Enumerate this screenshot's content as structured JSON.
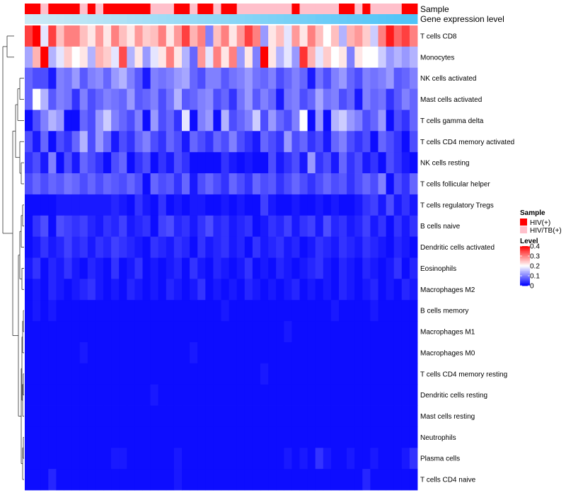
{
  "chart_data": {
    "type": "heatmap",
    "annotation_labels": {
      "sample": "Sample",
      "gene_expression": "Gene expression level"
    },
    "rows": [
      "T cells CD8",
      "Monocytes",
      "NK cells activated",
      "Mast cells activated",
      "T cells gamma delta",
      "T cells CD4 memory activated",
      "NK cells resting",
      "T cells follicular helper",
      "T cells regulatory  Tregs",
      "B cells naive",
      "Dendritic cells activated",
      "Eosinophils",
      "Macrophages M2",
      "B cells memory",
      "Macrophages M1",
      "Macrophages M0",
      "T cells CD4 memory resting",
      "Dendritic cells resting",
      "Mast cells resting",
      "Neutrophils",
      "Plasma cells",
      "T cells CD4 naive"
    ],
    "sample_groups": [
      "HIV(+)",
      "HIV(+)",
      "HIV/TB(+)",
      "HIV(+)",
      "HIV(+)",
      "HIV(+)",
      "HIV(+)",
      "HIV/TB(+)",
      "HIV(+)",
      "HIV/TB(+)",
      "HIV(+)",
      "HIV(+)",
      "HIV(+)",
      "HIV(+)",
      "HIV(+)",
      "HIV(+)",
      "HIV/TB(+)",
      "HIV/TB(+)",
      "HIV/TB(+)",
      "HIV(+)",
      "HIV(+)",
      "HIV/TB(+)",
      "HIV(+)",
      "HIV(+)",
      "HIV/TB(+)",
      "HIV(+)",
      "HIV(+)",
      "HIV/TB(+)",
      "HIV/TB(+)",
      "HIV/TB(+)",
      "HIV/TB(+)",
      "HIV/TB(+)",
      "HIV/TB(+)",
      "HIV/TB(+)",
      "HIV(+)",
      "HIV/TB(+)",
      "HIV/TB(+)",
      "HIV/TB(+)",
      "HIV/TB(+)",
      "HIV/TB(+)",
      "HIV(+)",
      "HIV(+)",
      "HIV/TB(+)",
      "HIV(+)",
      "HIV/TB(+)",
      "HIV/TB(+)",
      "HIV/TB(+)",
      "HIV/TB(+)",
      "HIV(+)",
      "HIV(+)"
    ],
    "gene_expression": [
      0.0,
      0.02,
      0.04,
      0.06,
      0.08,
      0.1,
      0.12,
      0.14,
      0.16,
      0.18,
      0.2,
      0.22,
      0.24,
      0.27,
      0.29,
      0.31,
      0.33,
      0.35,
      0.37,
      0.39,
      0.41,
      0.43,
      0.45,
      0.47,
      0.49,
      0.51,
      0.53,
      0.55,
      0.57,
      0.59,
      0.61,
      0.63,
      0.65,
      0.67,
      0.69,
      0.71,
      0.73,
      0.76,
      0.78,
      0.8,
      0.82,
      0.84,
      0.86,
      0.88,
      0.9,
      0.92,
      0.94,
      0.96,
      0.98,
      1.0
    ],
    "values": [
      [
        0.35,
        0.4,
        0.18,
        0.35,
        0.25,
        0.3,
        0.3,
        0.25,
        0.22,
        0.28,
        0.22,
        0.3,
        0.25,
        0.22,
        0.28,
        0.24,
        0.25,
        0.3,
        0.22,
        0.28,
        0.35,
        0.26,
        0.3,
        0.1,
        0.25,
        0.3,
        0.22,
        0.28,
        0.35,
        0.3,
        0.12,
        0.22,
        0.25,
        0.18,
        0.28,
        0.22,
        0.3,
        0.25,
        0.2,
        0.25,
        0.14,
        0.26,
        0.28,
        0.24,
        0.16,
        0.3,
        0.38,
        0.32,
        0.35,
        0.3
      ],
      [
        0.13,
        0.26,
        0.4,
        0.14,
        0.18,
        0.24,
        0.2,
        0.22,
        0.14,
        0.26,
        0.24,
        0.18,
        0.34,
        0.14,
        0.22,
        0.12,
        0.18,
        0.22,
        0.3,
        0.22,
        0.14,
        0.08,
        0.28,
        0.18,
        0.3,
        0.22,
        0.3,
        0.12,
        0.22,
        0.1,
        0.4,
        0.22,
        0.14,
        0.18,
        0.12,
        0.36,
        0.26,
        0.18,
        0.24,
        0.2,
        0.22,
        0.1,
        0.22,
        0.2,
        0.2,
        0.16,
        0.12,
        0.14,
        0.12,
        0.14
      ],
      [
        0.08,
        0.06,
        0.06,
        0.02,
        0.1,
        0.09,
        0.12,
        0.07,
        0.1,
        0.11,
        0.08,
        0.12,
        0.14,
        0.1,
        0.07,
        0.02,
        0.1,
        0.09,
        0.1,
        0.12,
        0.13,
        0.08,
        0.06,
        0.1,
        0.1,
        0.07,
        0.09,
        0.1,
        0.12,
        0.09,
        0.08,
        0.1,
        0.06,
        0.08,
        0.1,
        0.08,
        0.02,
        0.09,
        0.06,
        0.1,
        0.12,
        0.08,
        0.06,
        0.1,
        0.09,
        0.1,
        0.12,
        0.07,
        0.08,
        0.1
      ],
      [
        0.08,
        0.2,
        0.14,
        0.07,
        0.1,
        0.09,
        0.04,
        0.1,
        0.06,
        0.08,
        0.1,
        0.09,
        0.08,
        0.12,
        0.07,
        0.08,
        0.1,
        0.06,
        0.09,
        0.14,
        0.07,
        0.08,
        0.1,
        0.11,
        0.06,
        0.08,
        0.04,
        0.09,
        0.12,
        0.07,
        0.1,
        0.08,
        0.02,
        0.09,
        0.1,
        0.06,
        0.08,
        0.13,
        0.09,
        0.1,
        0.06,
        0.08,
        0.02,
        0.1,
        0.08,
        0.09,
        0.04,
        0.07,
        0.1,
        0.08
      ],
      [
        0.01,
        0.06,
        0.1,
        0.14,
        0.12,
        0.01,
        0.01,
        0.08,
        0.06,
        0.12,
        0.16,
        0.1,
        0.08,
        0.06,
        0.1,
        0.01,
        0.12,
        0.06,
        0.08,
        0.04,
        0.18,
        0.01,
        0.1,
        0.12,
        0.01,
        0.14,
        0.06,
        0.08,
        0.1,
        0.16,
        0.06,
        0.12,
        0.08,
        0.06,
        0.1,
        0.2,
        0.01,
        0.12,
        0.01,
        0.14,
        0.16,
        0.12,
        0.1,
        0.06,
        0.08,
        0.12,
        0.01,
        0.06,
        0.04,
        0.08
      ],
      [
        0.06,
        0.02,
        0.08,
        0.01,
        0.06,
        0.04,
        0.08,
        0.14,
        0.06,
        0.12,
        0.08,
        0.02,
        0.06,
        0.04,
        0.08,
        0.1,
        0.06,
        0.04,
        0.08,
        0.06,
        0.02,
        0.08,
        0.06,
        0.04,
        0.08,
        0.06,
        0.1,
        0.06,
        0.04,
        0.02,
        0.08,
        0.06,
        0.04,
        0.12,
        0.06,
        0.08,
        0.04,
        0.06,
        0.02,
        0.08,
        0.1,
        0.06,
        0.04,
        0.06,
        0.01,
        0.08,
        0.06,
        0.04,
        0.01,
        0.06
      ],
      [
        0.04,
        0.06,
        0.02,
        0.1,
        0.01,
        0.06,
        0.02,
        0.08,
        0.06,
        0.04,
        0.01,
        0.06,
        0.08,
        0.01,
        0.04,
        0.06,
        0.01,
        0.04,
        0.02,
        0.06,
        0.04,
        0.01,
        0.01,
        0.01,
        0.01,
        0.04,
        0.02,
        0.01,
        0.02,
        0.01,
        0.01,
        0.06,
        0.02,
        0.04,
        0.06,
        0.02,
        0.12,
        0.04,
        0.06,
        0.02,
        0.08,
        0.04,
        0.06,
        0.02,
        0.04,
        0.01,
        0.06,
        0.04,
        0.02,
        0.01
      ],
      [
        0.06,
        0.08,
        0.06,
        0.08,
        0.07,
        0.09,
        0.08,
        0.06,
        0.08,
        0.06,
        0.08,
        0.07,
        0.06,
        0.08,
        0.06,
        0.01,
        0.08,
        0.06,
        0.07,
        0.04,
        0.08,
        0.02,
        0.06,
        0.08,
        0.06,
        0.04,
        0.08,
        0.06,
        0.04,
        0.08,
        0.06,
        0.07,
        0.04,
        0.06,
        0.08,
        0.06,
        0.04,
        0.06,
        0.08,
        0.06,
        0.07,
        0.04,
        0.06,
        0.08,
        0.06,
        0.1,
        0.01,
        0.06,
        0.04,
        0.08
      ],
      [
        0.01,
        0.01,
        0.01,
        0.01,
        0.02,
        0.02,
        0.02,
        0.02,
        0.02,
        0.02,
        0.02,
        0.03,
        0.02,
        0.01,
        0.04,
        0.02,
        0.01,
        0.04,
        0.01,
        0.02,
        0.01,
        0.02,
        0.02,
        0.01,
        0.01,
        0.02,
        0.01,
        0.02,
        0.01,
        0.01,
        0.05,
        0.02,
        0.01,
        0.01,
        0.02,
        0.01,
        0.01,
        0.02,
        0.01,
        0.02,
        0.01,
        0.01,
        0.02,
        0.04,
        0.05,
        0.02,
        0.06,
        0.02,
        0.04,
        0.02
      ],
      [
        0.01,
        0.04,
        0.06,
        0.01,
        0.06,
        0.05,
        0.04,
        0.05,
        0.03,
        0.02,
        0.04,
        0.03,
        0.05,
        0.02,
        0.03,
        0.04,
        0.01,
        0.05,
        0.06,
        0.03,
        0.04,
        0.02,
        0.04,
        0.06,
        0.03,
        0.04,
        0.02,
        0.03,
        0.04,
        0.01,
        0.02,
        0.04,
        0.03,
        0.05,
        0.02,
        0.04,
        0.05,
        0.02,
        0.06,
        0.03,
        0.04,
        0.02,
        0.03,
        0.05,
        0.02,
        0.04,
        0.01,
        0.04,
        0.02,
        0.04
      ],
      [
        0.01,
        0.02,
        0.04,
        0.02,
        0.03,
        0.05,
        0.03,
        0.04,
        0.02,
        0.04,
        0.03,
        0.05,
        0.04,
        0.03,
        0.02,
        0.01,
        0.04,
        0.03,
        0.02,
        0.04,
        0.03,
        0.01,
        0.04,
        0.02,
        0.03,
        0.04,
        0.02,
        0.03,
        0.01,
        0.04,
        0.02,
        0.03,
        0.04,
        0.02,
        0.03,
        0.01,
        0.02,
        0.04,
        0.03,
        0.02,
        0.04,
        0.03,
        0.02,
        0.04,
        0.03,
        0.02,
        0.01,
        0.03,
        0.02,
        0.01
      ],
      [
        0.02,
        0.04,
        0.01,
        0.03,
        0.02,
        0.04,
        0.02,
        0.01,
        0.03,
        0.02,
        0.01,
        0.04,
        0.01,
        0.02,
        0.04,
        0.01,
        0.02,
        0.01,
        0.02,
        0.03,
        0.01,
        0.04,
        0.02,
        0.01,
        0.03,
        0.02,
        0.01,
        0.02,
        0.04,
        0.01,
        0.02,
        0.01,
        0.03,
        0.02,
        0.01,
        0.02,
        0.03,
        0.04,
        0.02,
        0.01,
        0.03,
        0.02,
        0.01,
        0.03,
        0.02,
        0.01,
        0.02,
        0.04,
        0.01,
        0.03
      ],
      [
        0.01,
        0.02,
        0.01,
        0.03,
        0.02,
        0.01,
        0.02,
        0.03,
        0.04,
        0.02,
        0.01,
        0.02,
        0.01,
        0.03,
        0.02,
        0.01,
        0.02,
        0.01,
        0.03,
        0.02,
        0.01,
        0.02,
        0.04,
        0.01,
        0.02,
        0.01,
        0.02,
        0.01,
        0.03,
        0.02,
        0.01,
        0.02,
        0.01,
        0.02,
        0.03,
        0.01,
        0.02,
        0.01,
        0.02,
        0.01,
        0.03,
        0.02,
        0.01,
        0.02,
        0.03,
        0.01,
        0.02,
        0.01,
        0.03,
        0.02
      ],
      [
        0.01,
        0.02,
        0.01,
        0.02,
        0.01,
        0.01,
        0.01,
        0.01,
        0.01,
        0.01,
        0.01,
        0.01,
        0.01,
        0.01,
        0.01,
        0.01,
        0.01,
        0.01,
        0.01,
        0.01,
        0.01,
        0.01,
        0.01,
        0.01,
        0.01,
        0.02,
        0.01,
        0.01,
        0.01,
        0.01,
        0.01,
        0.01,
        0.01,
        0.01,
        0.01,
        0.01,
        0.01,
        0.01,
        0.01,
        0.02,
        0.01,
        0.01,
        0.01,
        0.01,
        0.02,
        0.01,
        0.01,
        0.01,
        0.01,
        0.01
      ],
      [
        0.01,
        0.01,
        0.01,
        0.01,
        0.01,
        0.01,
        0.01,
        0.01,
        0.01,
        0.01,
        0.01,
        0.01,
        0.01,
        0.01,
        0.01,
        0.01,
        0.01,
        0.01,
        0.01,
        0.01,
        0.01,
        0.01,
        0.01,
        0.01,
        0.01,
        0.01,
        0.01,
        0.01,
        0.01,
        0.01,
        0.01,
        0.01,
        0.01,
        0.02,
        0.01,
        0.01,
        0.01,
        0.01,
        0.01,
        0.01,
        0.01,
        0.01,
        0.01,
        0.01,
        0.01,
        0.01,
        0.01,
        0.01,
        0.01,
        0.01
      ],
      [
        0.01,
        0.01,
        0.01,
        0.01,
        0.01,
        0.01,
        0.01,
        0.02,
        0.01,
        0.01,
        0.01,
        0.01,
        0.01,
        0.01,
        0.01,
        0.01,
        0.01,
        0.01,
        0.01,
        0.01,
        0.01,
        0.02,
        0.01,
        0.01,
        0.01,
        0.01,
        0.01,
        0.01,
        0.01,
        0.01,
        0.01,
        0.01,
        0.01,
        0.01,
        0.01,
        0.01,
        0.01,
        0.01,
        0.01,
        0.01,
        0.01,
        0.01,
        0.01,
        0.01,
        0.01,
        0.01,
        0.01,
        0.01,
        0.01,
        0.01
      ],
      [
        0.01,
        0.01,
        0.01,
        0.01,
        0.01,
        0.01,
        0.01,
        0.01,
        0.01,
        0.01,
        0.01,
        0.01,
        0.01,
        0.01,
        0.01,
        0.01,
        0.01,
        0.01,
        0.01,
        0.01,
        0.01,
        0.01,
        0.01,
        0.01,
        0.01,
        0.01,
        0.01,
        0.01,
        0.01,
        0.01,
        0.02,
        0.01,
        0.01,
        0.01,
        0.01,
        0.01,
        0.01,
        0.01,
        0.01,
        0.01,
        0.01,
        0.01,
        0.01,
        0.01,
        0.01,
        0.01,
        0.01,
        0.01,
        0.01,
        0.01
      ],
      [
        0.01,
        0.01,
        0.01,
        0.01,
        0.01,
        0.01,
        0.01,
        0.01,
        0.01,
        0.01,
        0.01,
        0.01,
        0.01,
        0.01,
        0.01,
        0.01,
        0.02,
        0.01,
        0.01,
        0.01,
        0.01,
        0.01,
        0.01,
        0.01,
        0.01,
        0.01,
        0.01,
        0.01,
        0.01,
        0.01,
        0.01,
        0.01,
        0.01,
        0.01,
        0.01,
        0.01,
        0.01,
        0.01,
        0.01,
        0.01,
        0.01,
        0.01,
        0.01,
        0.01,
        0.01,
        0.01,
        0.01,
        0.01,
        0.01,
        0.01
      ],
      [
        0.01,
        0.01,
        0.01,
        0.01,
        0.01,
        0.01,
        0.01,
        0.01,
        0.01,
        0.01,
        0.01,
        0.01,
        0.01,
        0.01,
        0.01,
        0.01,
        0.01,
        0.01,
        0.01,
        0.01,
        0.01,
        0.01,
        0.01,
        0.01,
        0.01,
        0.01,
        0.01,
        0.01,
        0.01,
        0.01,
        0.01,
        0.01,
        0.01,
        0.01,
        0.01,
        0.01,
        0.01,
        0.01,
        0.01,
        0.01,
        0.01,
        0.01,
        0.01,
        0.01,
        0.01,
        0.01,
        0.01,
        0.01,
        0.01,
        0.01
      ],
      [
        0.01,
        0.01,
        0.01,
        0.01,
        0.01,
        0.01,
        0.01,
        0.01,
        0.01,
        0.01,
        0.01,
        0.01,
        0.01,
        0.01,
        0.01,
        0.01,
        0.01,
        0.01,
        0.01,
        0.01,
        0.01,
        0.01,
        0.01,
        0.01,
        0.01,
        0.01,
        0.01,
        0.01,
        0.01,
        0.01,
        0.01,
        0.01,
        0.01,
        0.01,
        0.01,
        0.01,
        0.01,
        0.01,
        0.01,
        0.01,
        0.01,
        0.01,
        0.01,
        0.01,
        0.01,
        0.01,
        0.01,
        0.01,
        0.01,
        0.01
      ],
      [
        0.01,
        0.01,
        0.01,
        0.01,
        0.01,
        0.01,
        0.01,
        0.01,
        0.01,
        0.01,
        0.01,
        0.02,
        0.02,
        0.01,
        0.01,
        0.01,
        0.01,
        0.01,
        0.01,
        0.02,
        0.01,
        0.01,
        0.01,
        0.01,
        0.01,
        0.01,
        0.01,
        0.01,
        0.01,
        0.01,
        0.01,
        0.01,
        0.01,
        0.02,
        0.01,
        0.02,
        0.01,
        0.04,
        0.02,
        0.01,
        0.01,
        0.02,
        0.01,
        0.01,
        0.02,
        0.01,
        0.01,
        0.01,
        0.02,
        0.04
      ],
      [
        0.01,
        0.01,
        0.01,
        0.03,
        0.01,
        0.01,
        0.01,
        0.01,
        0.01,
        0.01,
        0.01,
        0.01,
        0.01,
        0.01,
        0.01,
        0.01,
        0.01,
        0.01,
        0.01,
        0.02,
        0.01,
        0.01,
        0.01,
        0.01,
        0.01,
        0.01,
        0.01,
        0.01,
        0.01,
        0.01,
        0.01,
        0.01,
        0.01,
        0.01,
        0.01,
        0.01,
        0.01,
        0.01,
        0.01,
        0.01,
        0.01,
        0.01,
        0.01,
        0.03,
        0.01,
        0.01,
        0.01,
        0.01,
        0.01,
        0.01
      ]
    ],
    "legend": {
      "sample_title": "Sample",
      "sample_entries": [
        "HIV(+)",
        "HIV/TB(+)"
      ],
      "level_title": "Level",
      "level_ticks": [
        "0.4",
        "0.3",
        "0.2",
        "0.1",
        "0"
      ],
      "level_tick_values": [
        0.4,
        0.3,
        0.2,
        0.1,
        0.0
      ]
    },
    "color_scale": {
      "low": "#0000ff",
      "mid": "#ffffff",
      "high": "#ff0000",
      "min": 0,
      "mid_value": 0.2,
      "max": 0.4
    },
    "colors": {
      "hiv": "#ff0000",
      "hivtb": "#ffc0cb",
      "expr_low": "#cdeaf5",
      "expr_high": "#4fc3f7"
    }
  }
}
